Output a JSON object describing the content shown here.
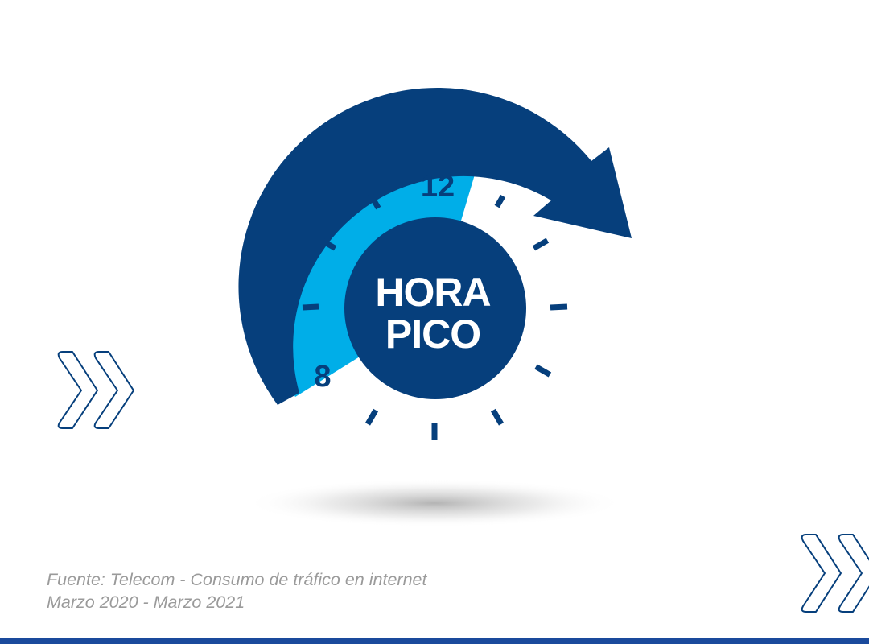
{
  "clock": {
    "title_line1": "HORA",
    "title_line2": "PICO",
    "hour_start": "8",
    "hour_end": "12"
  },
  "caption": {
    "line1": "Fuente: Telecom - Consumo de tráfico en internet",
    "line2": "Marzo 2020 - Marzo 2021"
  },
  "colors": {
    "navy": "#063f7c",
    "light_blue": "#00aee8",
    "bar": "#1a4a9c"
  }
}
